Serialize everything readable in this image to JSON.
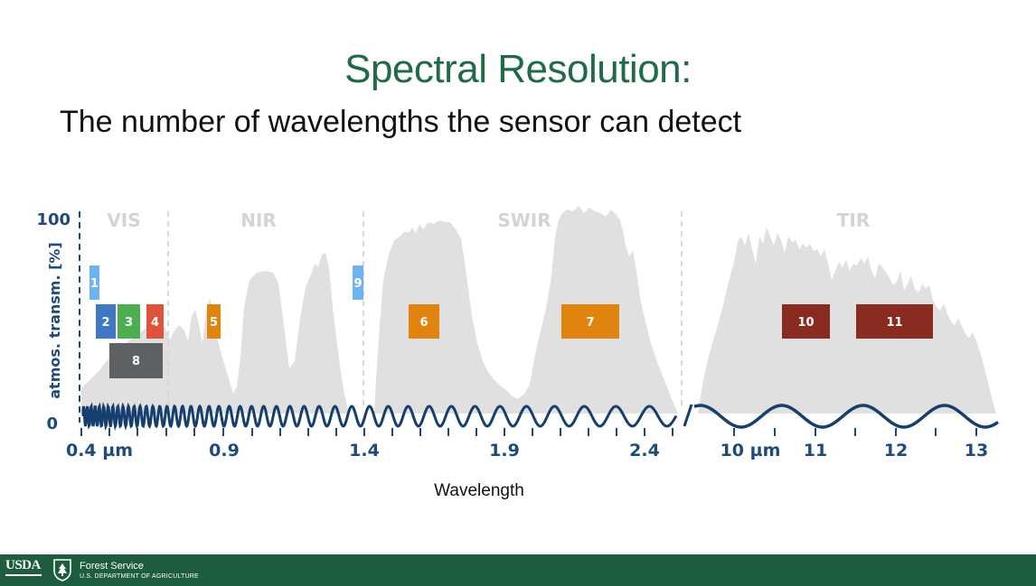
{
  "title": "Spectral Resolution:",
  "subtitle": "The number of wavelengths the sensor can detect",
  "diagram": {
    "y_axis": {
      "label": "atmos. transm. [%]",
      "max_label": "100",
      "min_label": "0"
    },
    "x_axis_label": "Wavelength",
    "regions": [
      "VIS",
      "NIR",
      "SWIR",
      "TIR"
    ],
    "ticks": [
      "0.4 µm",
      "0.9",
      "1.4",
      "1.9",
      "2.4",
      "10 µm",
      "11",
      "12",
      "13"
    ],
    "bands": [
      "1",
      "2",
      "3",
      "4",
      "5",
      "6",
      "7",
      "8",
      "9",
      "10",
      "11"
    ],
    "colors": {
      "coastal": "#6db3f2",
      "blue": "#3f78c1",
      "green": "#4cae4f",
      "red": "#e0533b",
      "nir": "#e0830f",
      "pan": "#5e6164",
      "tir": "#8a2b22",
      "wave": "#163f6e",
      "transmission": "#e0e0e0",
      "axis": "#1e4b7a"
    }
  },
  "footer": {
    "usda": "USDA",
    "agency": "Forest Service",
    "department": "U.S. DEPARTMENT OF AGRICULTURE"
  }
}
